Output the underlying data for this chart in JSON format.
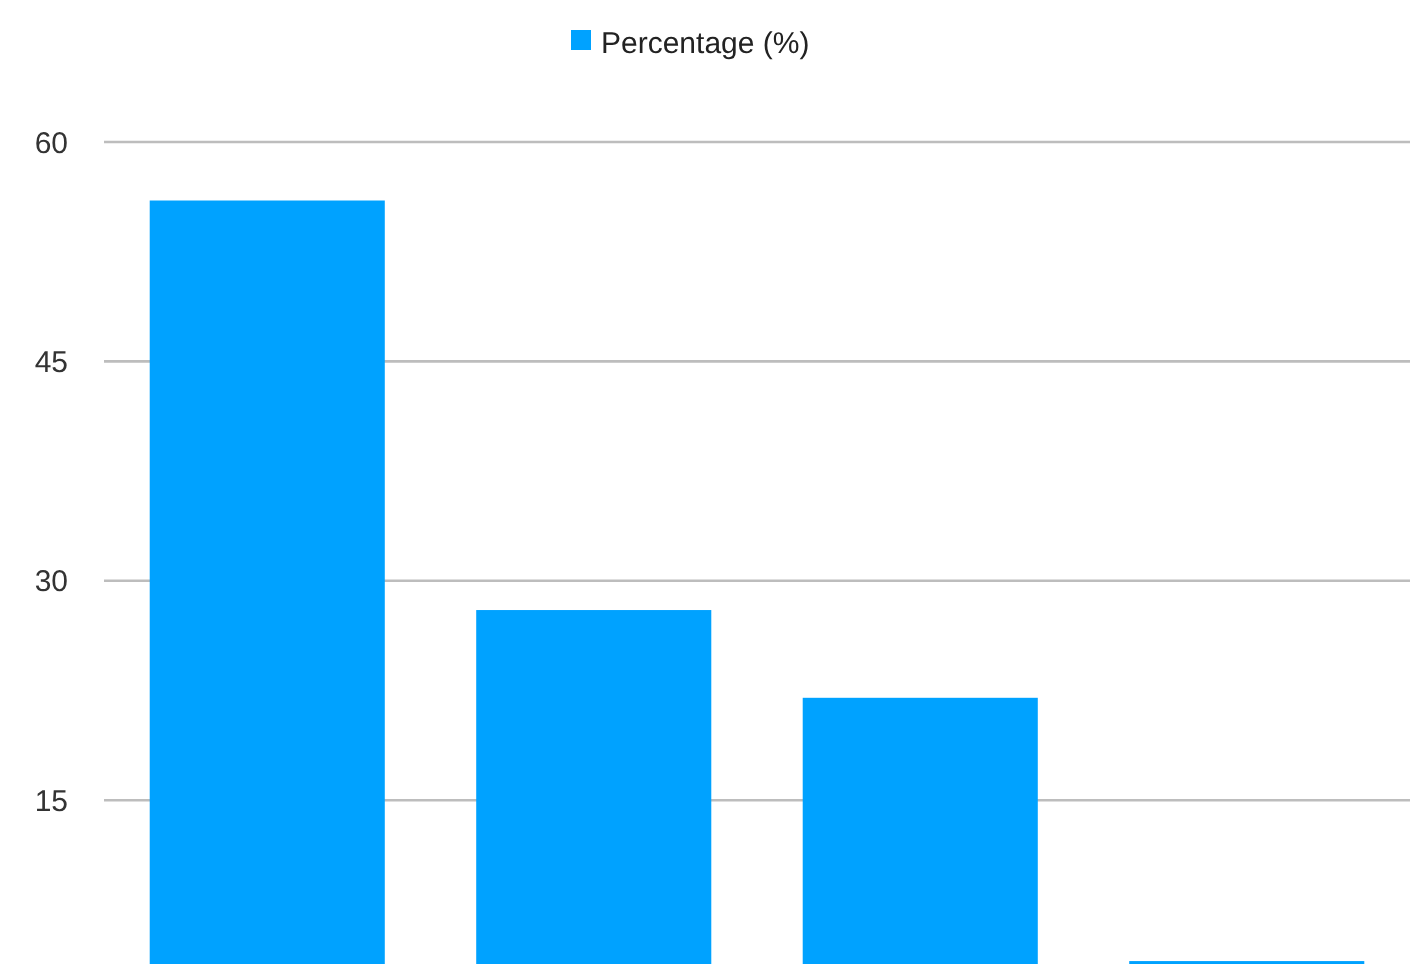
{
  "chart_data": {
    "type": "bar",
    "categories": [
      null,
      null,
      null,
      null
    ],
    "series": [
      {
        "name": "Percentage (%)",
        "color": "#00a2ff",
        "values": [
          56,
          28,
          22,
          4
        ]
      }
    ],
    "ylim": [
      3.8,
      60
    ],
    "yticks": [
      15,
      30,
      45,
      60
    ],
    "grid": "y",
    "legend": "top"
  }
}
